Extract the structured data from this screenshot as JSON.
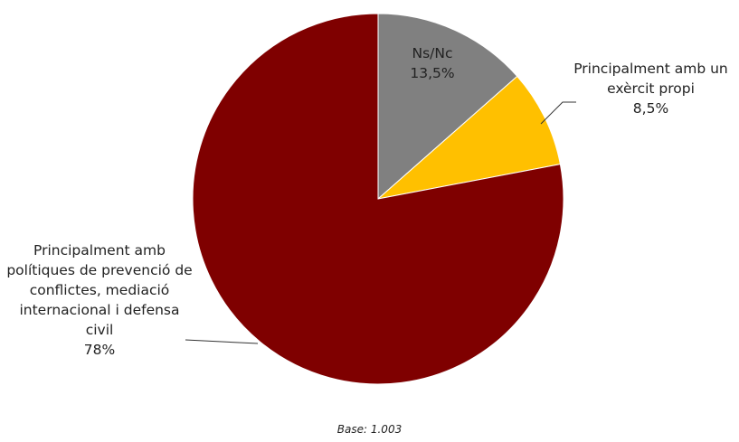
{
  "chart_data": {
    "type": "pie",
    "categories": [
      "Ns/Nc",
      "Principalment amb un exèrcit propi",
      "Principalment amb polítiques de prevenció de conflictes, mediació internacional i defensa civil"
    ],
    "values": [
      13.5,
      8.5,
      78
    ],
    "value_labels": [
      "13,5%",
      "8,5%",
      "78%"
    ],
    "colors": [
      "#808080",
      "#ffc000",
      "#7f0000"
    ],
    "note": "Base: 1.003"
  }
}
